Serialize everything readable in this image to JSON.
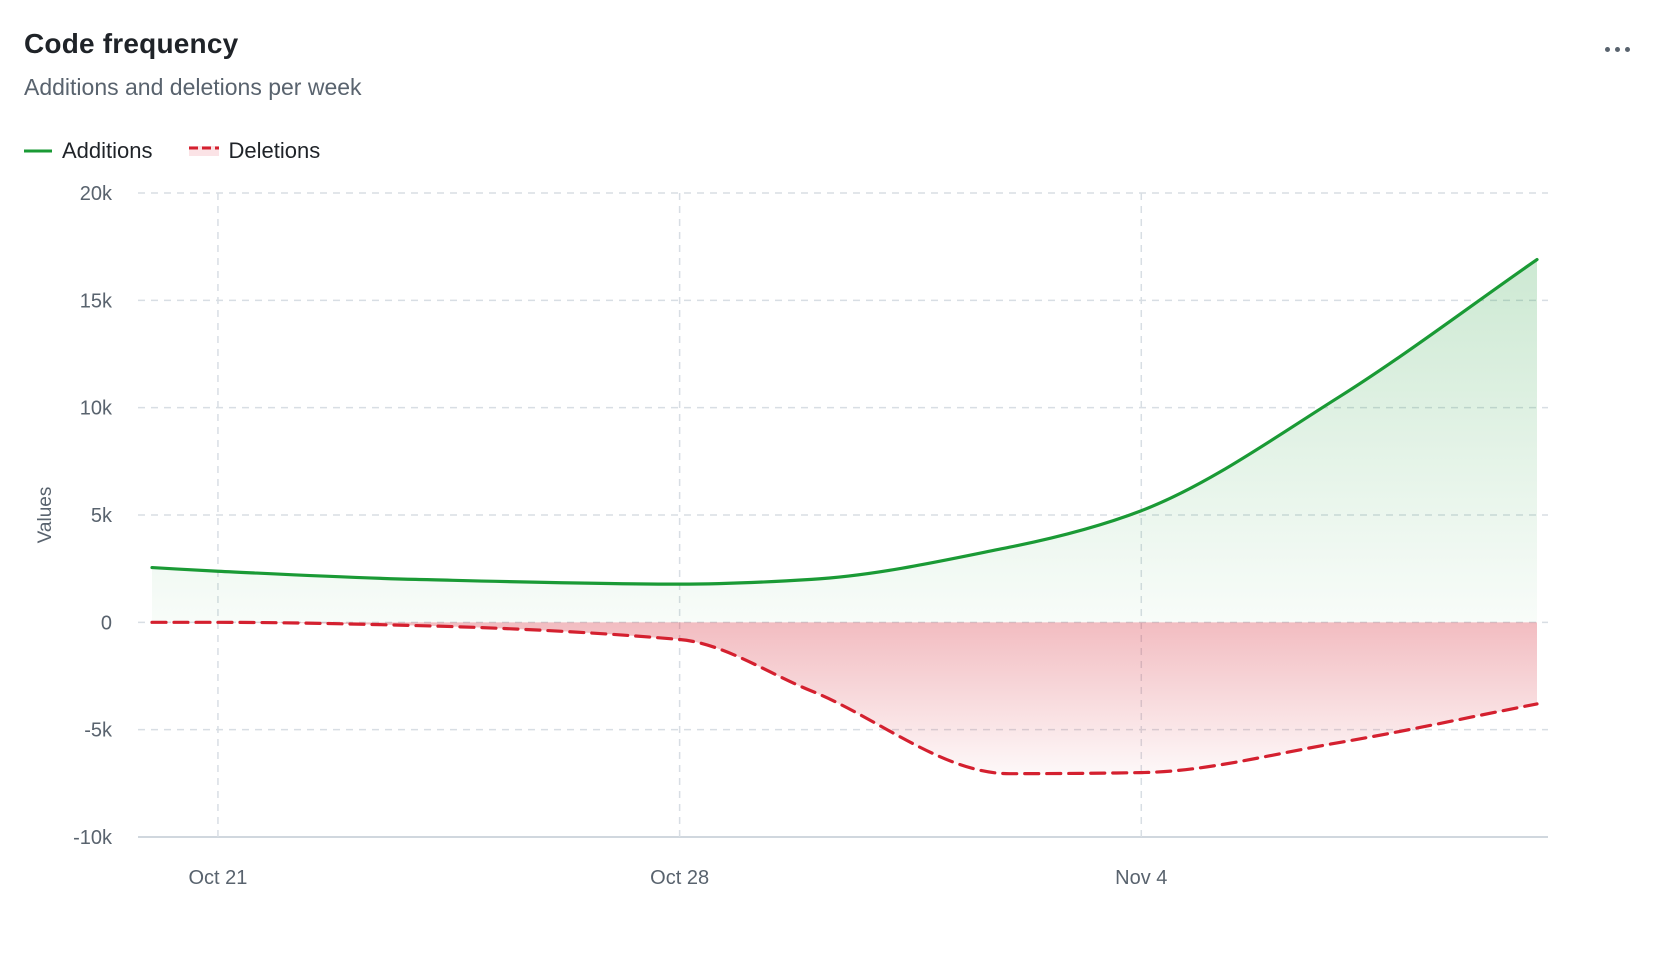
{
  "header": {
    "title": "Code frequency",
    "subtitle": "Additions and deletions per week",
    "menu_icon": "kebab-horizontal-icon"
  },
  "legend": [
    {
      "label": "Additions",
      "color": "#1a9a35",
      "style": "solid"
    },
    {
      "label": "Deletions",
      "color": "#d4202f",
      "style": "dashed"
    }
  ],
  "chart_data": {
    "type": "area",
    "ylabel": "Values",
    "ylim": [
      -10000,
      20000
    ],
    "yticks": [
      20000,
      15000,
      10000,
      5000,
      0,
      -5000,
      -10000
    ],
    "ytick_labels": [
      "20k",
      "15k",
      "10k",
      "5k",
      "0",
      "-5k",
      "-10k"
    ],
    "xticks": [
      {
        "label": "Oct 21",
        "x": 21
      },
      {
        "label": "Oct 28",
        "x": 28
      },
      {
        "label": "Nov 4",
        "x": 35
      }
    ],
    "xlim": [
      20,
      41
    ],
    "grid": true,
    "legend_position": "top-left",
    "series": [
      {
        "name": "Additions",
        "color": "#1a9a35",
        "x": [
          20,
          21,
          24,
          28,
          30,
          33,
          35,
          38,
          41
        ],
        "values": [
          2550,
          2380,
          2000,
          1780,
          2000,
          3500,
          5200,
          10500,
          16900
        ]
      },
      {
        "name": "Deletions",
        "color": "#d4202f",
        "x": [
          20,
          21,
          24,
          28,
          30,
          33,
          35,
          38,
          41
        ],
        "values": [
          0,
          0,
          -150,
          -800,
          -3200,
          -7050,
          -7000,
          -5600,
          -3800
        ]
      }
    ]
  }
}
